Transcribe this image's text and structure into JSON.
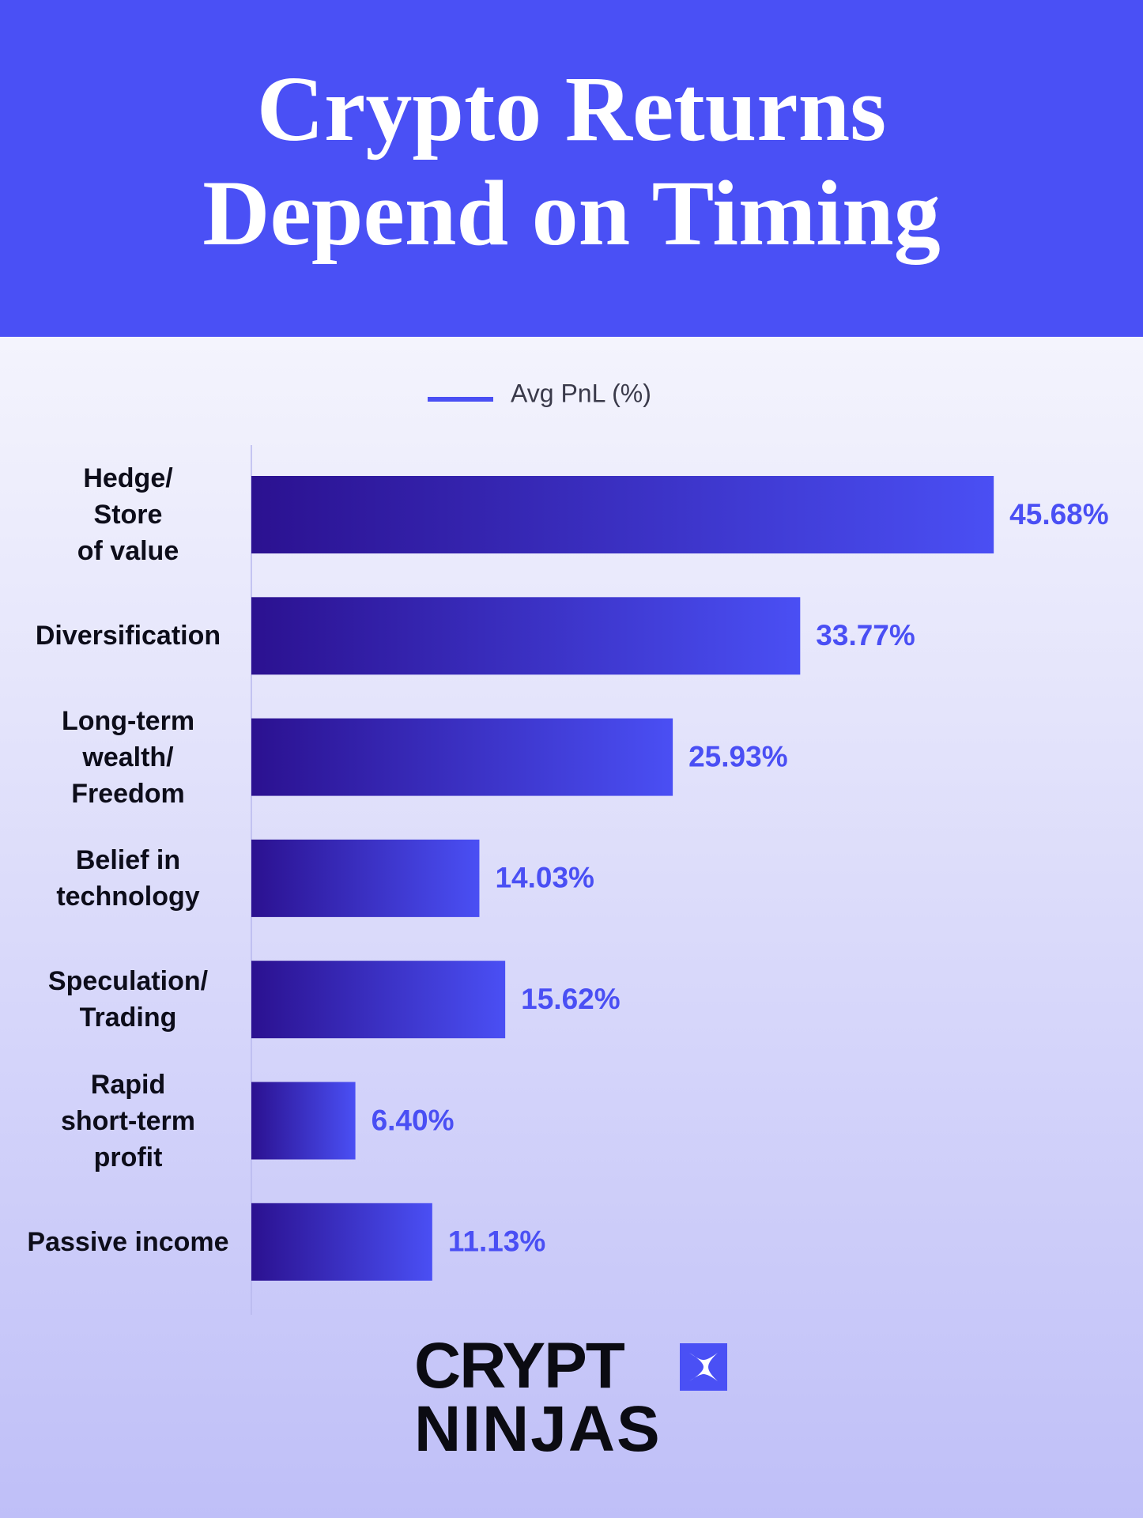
{
  "chart_data": {
    "type": "hbar",
    "title": "Crypto Returns\nDepend on Timing",
    "categories": [
      "Hedge/\nStore\nof value",
      "Diversification",
      "Long-term\nwealth/\nFreedom",
      "Belief in\ntechnology",
      "Speculation/\nTrading",
      "Rapid\nshort-term\nprofit",
      "Passive income"
    ],
    "series": [
      {
        "name": "Avg PnL (%)",
        "color": "#4a4ff4",
        "gradient_start": "#2b1190",
        "values": [
          45.68,
          33.77,
          25.93,
          14.03,
          15.62,
          6.4,
          11.13
        ],
        "value_labels": [
          "45.68%",
          "33.77%",
          "25.93%",
          "14.03%",
          "15.62%",
          "6.40%",
          "11.13%"
        ]
      }
    ],
    "xlim": [
      0,
      50
    ],
    "legend": "top",
    "brand": [
      "CRYPT",
      "NINJAS"
    ]
  }
}
